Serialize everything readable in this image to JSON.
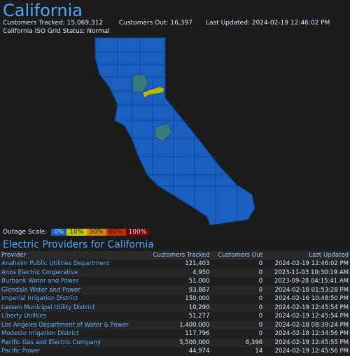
{
  "page": {
    "title": "California",
    "customers_tracked": "Customers Tracked: 15,069,312",
    "customers_out": "Customers Out: 16,397",
    "last_updated": "Last Updated: 2024-02-19 12:46:02 PM",
    "iso_status": "California ISO Grid Status: Normal"
  },
  "scale": {
    "label": "Outage Scale:",
    "items": [
      {
        "text": "0%",
        "color": "#1a5fbf",
        "textColor": "#cfe6ff"
      },
      {
        "text": "10%",
        "color": "#c8c800",
        "textColor": "#1b1b1b"
      },
      {
        "text": "30%",
        "color": "#d08a00",
        "textColor": "#1b1b1b"
      },
      {
        "text": "60%",
        "color": "#c03000",
        "textColor": "#1b1b1b"
      },
      {
        "text": "100%",
        "color": "#7a0000",
        "textColor": "#cfe6ff"
      }
    ]
  },
  "providers": {
    "title": "Electric Providers for California",
    "columns": [
      "Provider",
      "Customers Tracked",
      "Customers Out",
      "Last Updated"
    ],
    "rows": [
      [
        "Anaheim Public Utilities Department",
        "121,403",
        "0",
        "2024-02-19 12:46:02 PM"
      ],
      [
        "Anza Electric Cooperative",
        "4,950",
        "0",
        "2023-11-03 10:30:19 AM"
      ],
      [
        "Burbank Water and Power",
        "51,000",
        "0",
        "2023-09-28 04:15:41 AM"
      ],
      [
        "Glendale Water and Power",
        "93,887",
        "0",
        "2024-02-18 01:53:28 PM"
      ],
      [
        "Imperial Irrigation District",
        "150,000",
        "0",
        "2024-02-16 10:48:50 PM"
      ],
      [
        "Lassen Municipal Utility District",
        "10,290",
        "0",
        "2024-02-19 12:45:54 PM"
      ],
      [
        "Liberty Utilities",
        "51,277",
        "0",
        "2024-02-19 12:45:54 PM"
      ],
      [
        "Los Angeles Department of Water & Power",
        "1,400,000",
        "0",
        "2024-02-18 08:39:24 PM"
      ],
      [
        "Modesto Irrigation District",
        "117,796",
        "0",
        "2024-02-18 12:34:56 PM"
      ],
      [
        "Pacific Gas and Electric Company",
        "5,500,000",
        "6,396",
        "2024-02-19 12:45:55 PM"
      ],
      [
        "Pacific Power",
        "44,974",
        "14",
        "2024-02-19 12:45:56 PM"
      ]
    ]
  },
  "colors": {
    "map_fill": "#1a5fbf",
    "map_stroke": "#0e3f8a",
    "highlight_green": "#3a7a7a",
    "highlight_yellow": "#b8b800"
  }
}
